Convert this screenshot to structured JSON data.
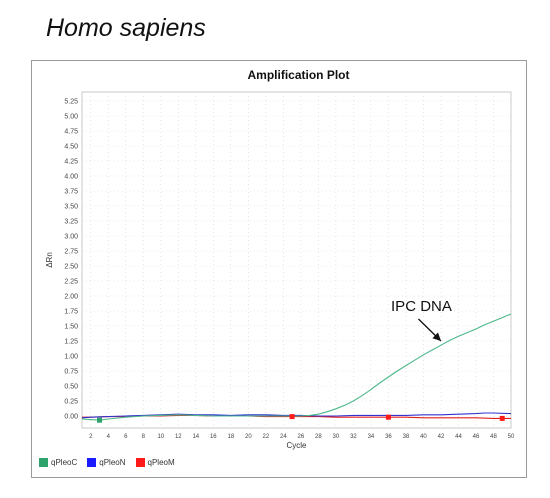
{
  "page_title": "Homo sapiens",
  "chart_data": {
    "type": "line",
    "title": "Amplification Plot",
    "xlabel": "Cycle",
    "ylabel": "ΔRn",
    "xlim": [
      1,
      50
    ],
    "ylim": [
      -0.2,
      5.4
    ],
    "x_ticks": [
      2,
      4,
      6,
      8,
      10,
      12,
      14,
      16,
      18,
      20,
      22,
      24,
      26,
      28,
      30,
      32,
      34,
      36,
      38,
      40,
      42,
      44,
      46,
      48,
      50
    ],
    "y_ticks": [
      "0.00",
      "0.25",
      "0.50",
      "0.75",
      "1.00",
      "1.25",
      "1.50",
      "1.75",
      "2.00",
      "2.25",
      "2.50",
      "2.75",
      "3.00",
      "3.25",
      "3.50",
      "3.75",
      "4.00",
      "4.25",
      "4.50",
      "4.75",
      "5.00",
      "5.25"
    ],
    "grid": true,
    "legend_position": "bottom-left",
    "series": [
      {
        "name": "qPleoC",
        "color": "#2fa36b",
        "line_color": "#4db88a",
        "x": [
          1,
          2,
          3,
          4,
          6,
          8,
          10,
          12,
          14,
          16,
          18,
          20,
          22,
          24,
          26,
          27,
          28,
          29,
          30,
          31,
          32,
          33,
          34,
          35,
          36,
          37,
          38,
          39,
          40,
          41,
          42,
          43,
          44,
          45,
          46,
          47,
          48,
          49,
          50
        ],
        "y": [
          -0.05,
          -0.06,
          -0.07,
          -0.05,
          -0.02,
          0.0,
          0.01,
          0.02,
          0.01,
          0.0,
          0.0,
          0.0,
          0.0,
          0.0,
          0.0,
          0.01,
          0.03,
          0.07,
          0.12,
          0.18,
          0.25,
          0.34,
          0.44,
          0.55,
          0.65,
          0.75,
          0.84,
          0.93,
          1.02,
          1.1,
          1.18,
          1.26,
          1.33,
          1.39,
          1.45,
          1.52,
          1.58,
          1.64,
          1.7
        ]
      },
      {
        "name": "qPleoN",
        "color": "#1a1aff",
        "line_color": "#3333cc",
        "x": [
          1,
          2,
          4,
          6,
          8,
          10,
          12,
          14,
          16,
          18,
          20,
          22,
          24,
          26,
          28,
          30,
          32,
          34,
          36,
          38,
          40,
          42,
          44,
          46,
          47,
          48,
          50
        ],
        "y": [
          -0.03,
          -0.02,
          -0.01,
          0.0,
          0.01,
          0.02,
          0.03,
          0.02,
          0.02,
          0.01,
          0.02,
          0.02,
          0.01,
          0.01,
          0.0,
          0.0,
          0.01,
          0.01,
          0.01,
          0.01,
          0.02,
          0.02,
          0.03,
          0.04,
          0.05,
          0.05,
          0.04
        ]
      },
      {
        "name": "qPleoM",
        "color": "#ff1a1a",
        "line_color": "#e02020",
        "x": [
          1,
          2,
          4,
          6,
          8,
          10,
          12,
          14,
          16,
          18,
          20,
          22,
          24,
          26,
          28,
          30,
          32,
          34,
          36,
          38,
          40,
          42,
          44,
          46,
          48,
          50
        ],
        "y": [
          -0.02,
          -0.02,
          -0.01,
          -0.01,
          0.0,
          0.0,
          0.01,
          0.01,
          0.0,
          0.0,
          0.0,
          -0.01,
          -0.01,
          -0.01,
          -0.01,
          -0.02,
          -0.02,
          -0.02,
          -0.02,
          -0.02,
          -0.03,
          -0.03,
          -0.03,
          -0.03,
          -0.04,
          -0.04
        ]
      }
    ],
    "markers": [
      {
        "series": "qPleoC",
        "x": 3,
        "y": -0.07
      },
      {
        "series": "qPleoM",
        "x": 25,
        "y": -0.01
      },
      {
        "series": "qPleoM",
        "x": 36,
        "y": -0.02
      },
      {
        "series": "qPleoM",
        "x": 49,
        "y": -0.04
      }
    ],
    "annotation": {
      "text": "IPC DNA",
      "arrow_from": [
        40,
        1.55
      ],
      "arrow_to": [
        42,
        1.25
      ]
    }
  }
}
